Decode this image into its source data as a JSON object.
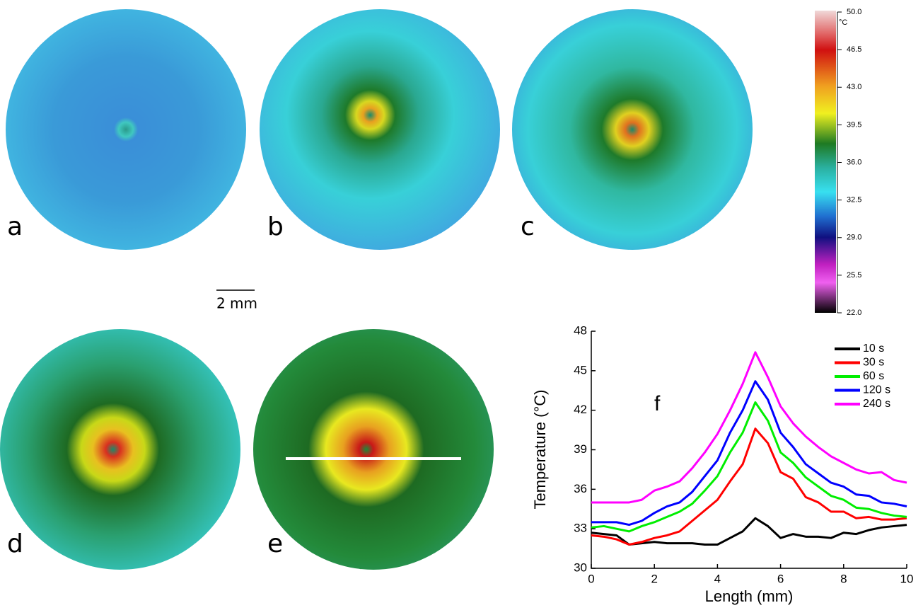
{
  "panel_labels": [
    "a",
    "b",
    "c",
    "d",
    "e"
  ],
  "scale_bar": "2 mm",
  "colorbar": {
    "unit": "°C",
    "lim": [
      22,
      50
    ],
    "ticks": [
      {
        "value": 50,
        "label": "50.0"
      },
      {
        "value": 46.5,
        "label": "46.5"
      },
      {
        "value": 43,
        "label": "43.0"
      },
      {
        "value": 39.5,
        "label": "39.5"
      },
      {
        "value": 36,
        "label": "36.0"
      },
      {
        "value": 32.5,
        "label": "32.5"
      },
      {
        "value": 29,
        "label": "29.0"
      },
      {
        "value": 25.5,
        "label": "25.5"
      },
      {
        "value": 22,
        "label": "22.0"
      }
    ]
  },
  "chart_data": {
    "type": "line",
    "panel_label": "f",
    "xlabel": "Length (mm)",
    "ylabel": "Temperature (°C)",
    "x": [
      0,
      0.4,
      0.8,
      1.2,
      1.6,
      2,
      2.4,
      2.8,
      3.2,
      3.6,
      4,
      4.4,
      4.8,
      5.2,
      5.6,
      6,
      6.4,
      6.8,
      7.2,
      7.6,
      8,
      8.4,
      8.8,
      9.2,
      9.6,
      10
    ],
    "series": [
      {
        "name": "10 s",
        "color": "#000000",
        "values": [
          32.7,
          32.6,
          32.5,
          31.8,
          31.9,
          32.0,
          31.9,
          31.9,
          31.9,
          31.8,
          31.8,
          32.3,
          32.8,
          33.8,
          33.2,
          32.3,
          32.6,
          32.4,
          32.4,
          32.3,
          32.7,
          32.6,
          32.9,
          33.1,
          33.2,
          33.3
        ]
      },
      {
        "name": "30 s",
        "color": "#ff0000",
        "values": [
          32.5,
          32.4,
          32.2,
          31.8,
          32.0,
          32.3,
          32.5,
          32.8,
          33.6,
          34.4,
          35.2,
          36.6,
          37.9,
          40.6,
          39.5,
          37.3,
          36.8,
          35.4,
          35.0,
          34.3,
          34.3,
          33.8,
          33.9,
          33.7,
          33.7,
          33.8
        ]
      },
      {
        "name": "60 s",
        "color": "#00ee00",
        "values": [
          33.1,
          33.2,
          33.0,
          32.8,
          33.2,
          33.5,
          33.9,
          34.3,
          34.9,
          35.9,
          37.0,
          38.8,
          40.3,
          42.6,
          41.2,
          38.8,
          38.0,
          36.9,
          36.2,
          35.5,
          35.2,
          34.6,
          34.5,
          34.2,
          34.0,
          33.9
        ]
      },
      {
        "name": "120 s",
        "color": "#0000ff",
        "values": [
          33.5,
          33.5,
          33.5,
          33.3,
          33.6,
          34.2,
          34.7,
          35.0,
          35.8,
          37.0,
          38.2,
          40.3,
          42.0,
          44.2,
          42.8,
          40.3,
          39.2,
          37.9,
          37.2,
          36.5,
          36.2,
          35.6,
          35.5,
          35.0,
          34.9,
          34.7
        ]
      },
      {
        "name": "240 s",
        "color": "#ff00ff",
        "values": [
          35.0,
          35.0,
          35.0,
          35.0,
          35.2,
          35.9,
          36.2,
          36.6,
          37.6,
          38.8,
          40.2,
          42.0,
          44.0,
          46.4,
          44.5,
          42.3,
          41.0,
          40.0,
          39.2,
          38.5,
          38.0,
          37.5,
          37.2,
          37.3,
          36.7,
          36.5
        ]
      }
    ],
    "xlim": [
      0,
      10
    ],
    "ylim": [
      30,
      48
    ],
    "xticks": [
      0,
      2,
      4,
      6,
      8,
      10
    ],
    "yticks": [
      30,
      33,
      36,
      39,
      42,
      45,
      48
    ],
    "legend": "upper right"
  }
}
